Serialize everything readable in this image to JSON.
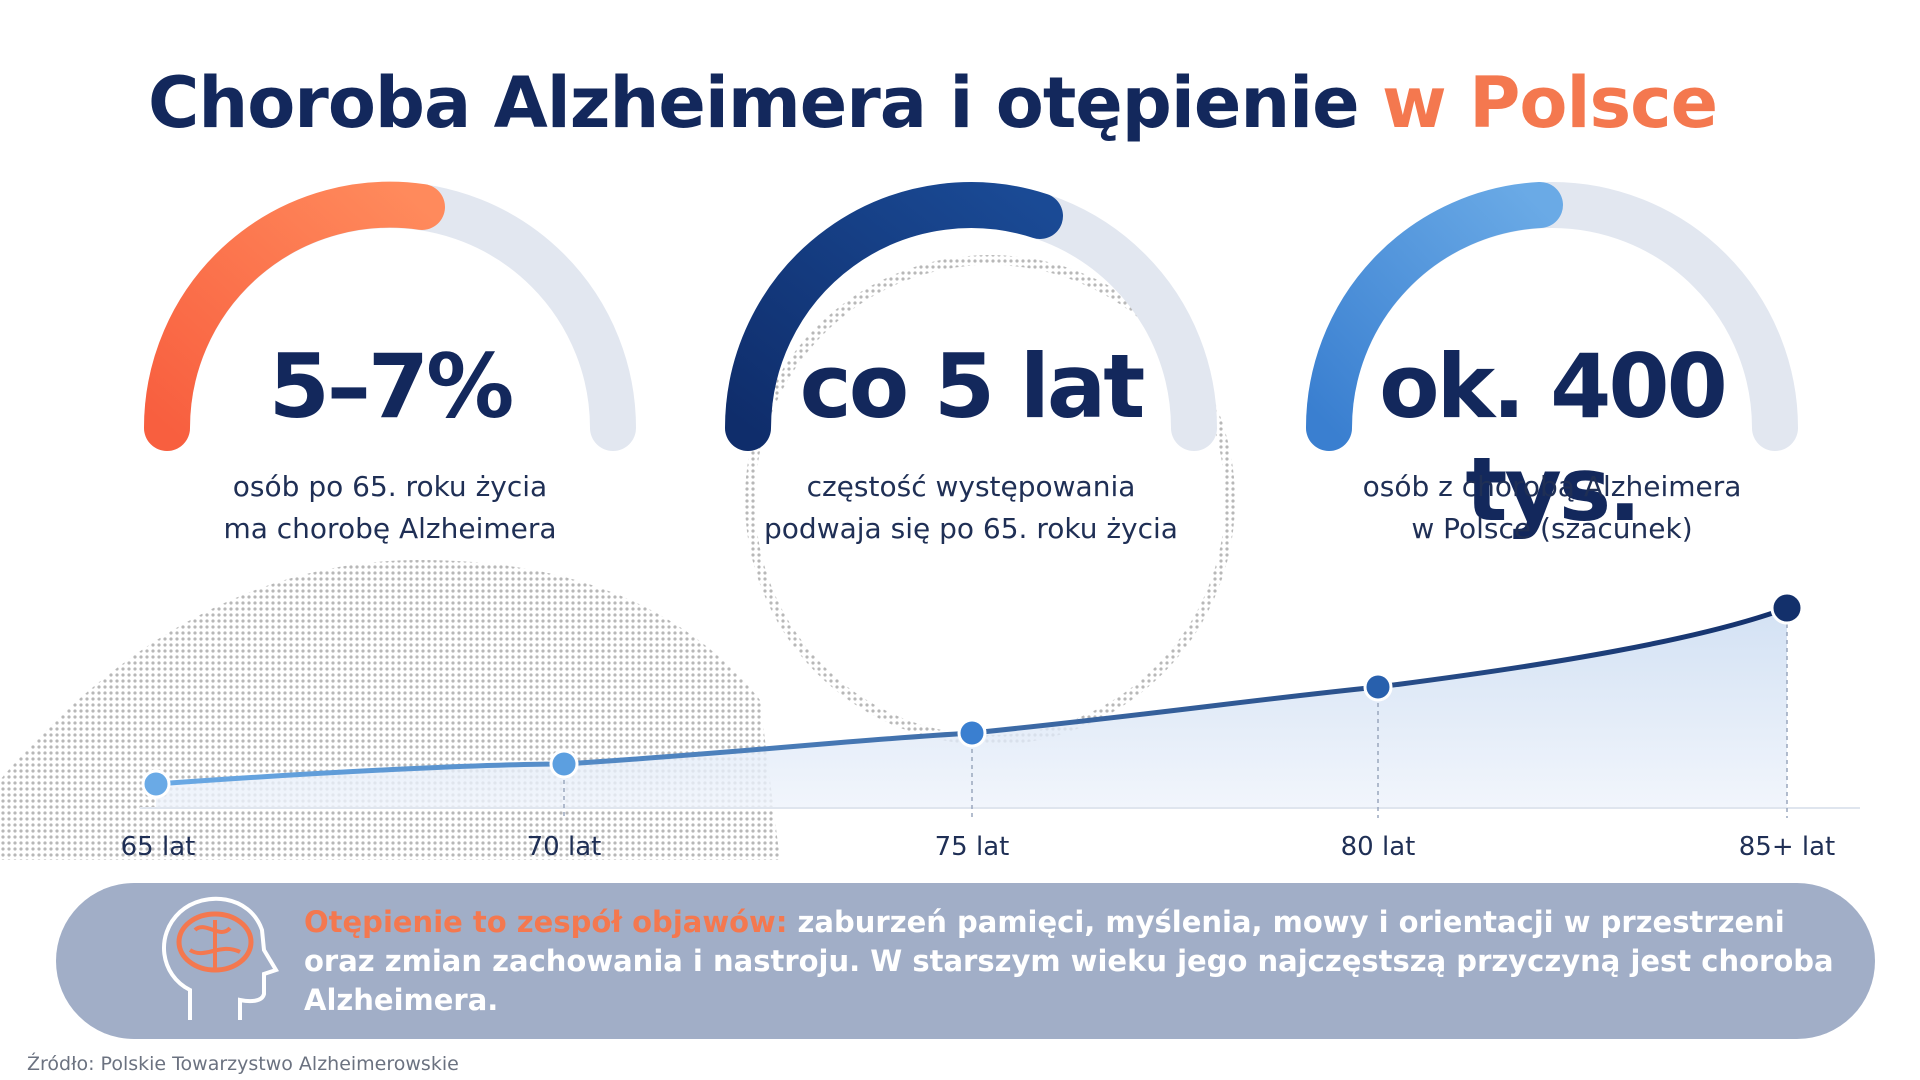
{
  "title": {
    "main": "Choroba Alzheimera i otępienie",
    "highlight": "w Polsce"
  },
  "stats": [
    {
      "value": "5–7%",
      "description": [
        "osób po 65. roku życia",
        "ma chorobę Alzheimera"
      ]
    },
    {
      "value": "co 5 lat",
      "description": [
        "częstość występowania",
        "podwaja się po 65. roku życia"
      ]
    },
    {
      "value": "ok. 400 tys.",
      "description": [
        "osób z chorobą Alzheimera",
        "w Polsce (szacunek)"
      ]
    }
  ],
  "age_axis": [
    "65 lat",
    "70 lat",
    "75 lat",
    "80 lat",
    "85+ lat"
  ],
  "note": {
    "lead": "Otępienie to zespół objawów:",
    "text": "zaburzeń pamięci, myślenia, mowy i orientacji w przestrzeni oraz zmian zachowania i nastroju. W starszym wieku jego najczęstszą przyczyną jest choroba Alzheimera."
  },
  "source": "Źródło: Polskie Towarzystwo Alzheimerowskie"
}
